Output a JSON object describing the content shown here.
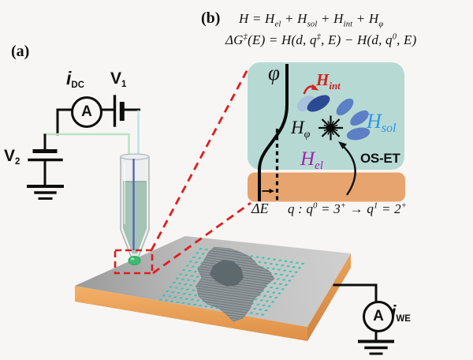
{
  "figure": {
    "background": "#f7f6f4",
    "panel_a": {
      "label": "(a)",
      "ammeter_symbol": "A",
      "i_dc": {
        "base": "i",
        "sub": "DC"
      },
      "v1": {
        "base": "V",
        "sub": "1"
      },
      "v2": {
        "base": "V",
        "sub": "2"
      },
      "i_we": {
        "base": "i",
        "sub": "WE"
      }
    },
    "panel_b": {
      "label": "(b)",
      "eq_hamiltonian": "H = H<sub>el</sub> + H<sub>sol</sub> + H<sub>int</sub> + H<sub>φ</sub>",
      "eq_activation": "ΔG<sup>‡</sup>(E) = H(d, q<sup>‡</sup>, E) − H(d, q<sup>0</sup>, E)",
      "phi": "φ",
      "h_int": {
        "base": "H",
        "sub": "int"
      },
      "h_sol": {
        "base": "H",
        "sub": "sol"
      },
      "h_phi": {
        "base": "H",
        "sub": "φ"
      },
      "h_el": {
        "base": "H",
        "sub": "el"
      },
      "os_et": "OS-ET",
      "delta_e": "ΔE",
      "eq_charge": "q : q<sup>0</sup> = 3<sup>+</sup> → q<sup>1</sup> = 2<sup>+</sup>"
    },
    "colors": {
      "solution_box_teal": "#b7d9d4",
      "electrode_orange": "#e8a46e",
      "h_int_red": "#cf2420",
      "h_sol_blue": "#2b97e8",
      "h_el_purple": "#a224ad",
      "callout_red": "#e01d1d",
      "dot_array_teal": "#2fc7b1",
      "substrate_gold": "#efa65c",
      "pipette_liquid_green": "#74ab8e",
      "droplet_green": "#3abd6d",
      "inner_wire_indigo": "#5963ba"
    }
  }
}
